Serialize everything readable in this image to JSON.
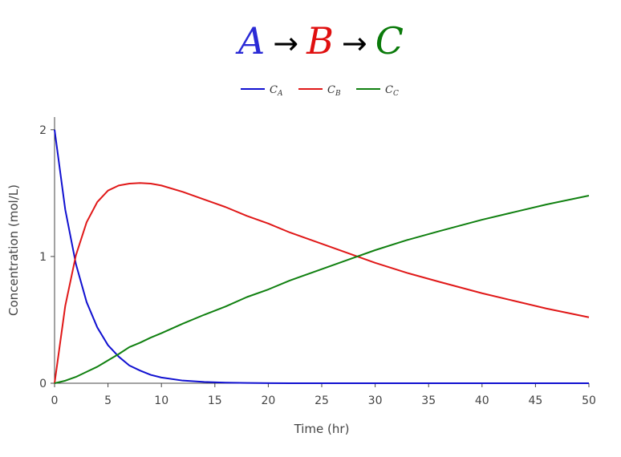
{
  "title": {
    "parts": [
      {
        "text": "A",
        "color": "#2a2ad6"
      },
      {
        "text": "→",
        "color": "#000000"
      },
      {
        "text": "B",
        "color": "#e01010"
      },
      {
        "text": "→",
        "color": "#000000"
      },
      {
        "text": "C",
        "color": "#0a7a0a"
      }
    ]
  },
  "chart_data": {
    "type": "line",
    "title": "A → B → C",
    "xlabel": "Time (hr)",
    "ylabel": "Concentration (mol/L)",
    "xlim": [
      0,
      50
    ],
    "ylim": [
      0,
      2.1
    ],
    "xticks": [
      0,
      5,
      10,
      15,
      20,
      25,
      30,
      35,
      40,
      45,
      50
    ],
    "yticks": [
      0,
      1,
      2
    ],
    "grid": false,
    "legend_position": "top-center",
    "x": [
      0,
      1,
      2,
      3,
      4,
      5,
      6,
      7,
      8,
      9,
      10,
      12,
      14,
      16,
      18,
      20,
      22,
      25,
      28,
      30,
      33,
      36,
      40,
      43,
      46,
      50
    ],
    "series": [
      {
        "name": "C_A",
        "label_main": "C",
        "label_sub": "A",
        "color": "#1010d0",
        "values": [
          2.0,
          1.37,
          0.94,
          0.64,
          0.44,
          0.3,
          0.21,
          0.14,
          0.1,
          0.066,
          0.045,
          0.021,
          0.01,
          0.005,
          0.002,
          0.001,
          0.0,
          0.0,
          0.0,
          0.0,
          0.0,
          0.0,
          0.0,
          0.0,
          0.0,
          0.0
        ]
      },
      {
        "name": "C_B",
        "label_main": "C",
        "label_sub": "B",
        "color": "#e01818",
        "values": [
          0.0,
          0.61,
          1.01,
          1.27,
          1.43,
          1.52,
          1.56,
          1.575,
          1.58,
          1.575,
          1.56,
          1.51,
          1.45,
          1.39,
          1.32,
          1.26,
          1.19,
          1.1,
          1.01,
          0.95,
          0.87,
          0.8,
          0.71,
          0.65,
          0.59,
          0.52
        ]
      },
      {
        "name": "C_C",
        "label_main": "C",
        "label_sub": "C",
        "color": "#108010",
        "values": [
          0.0,
          0.02,
          0.05,
          0.09,
          0.13,
          0.18,
          0.23,
          0.285,
          0.32,
          0.36,
          0.395,
          0.47,
          0.54,
          0.605,
          0.68,
          0.74,
          0.81,
          0.9,
          0.99,
          1.05,
          1.13,
          1.2,
          1.29,
          1.35,
          1.41,
          1.48
        ]
      }
    ]
  }
}
